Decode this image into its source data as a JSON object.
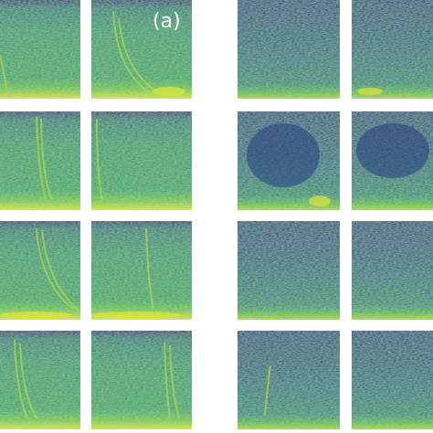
{
  "label": "(a)"
}
